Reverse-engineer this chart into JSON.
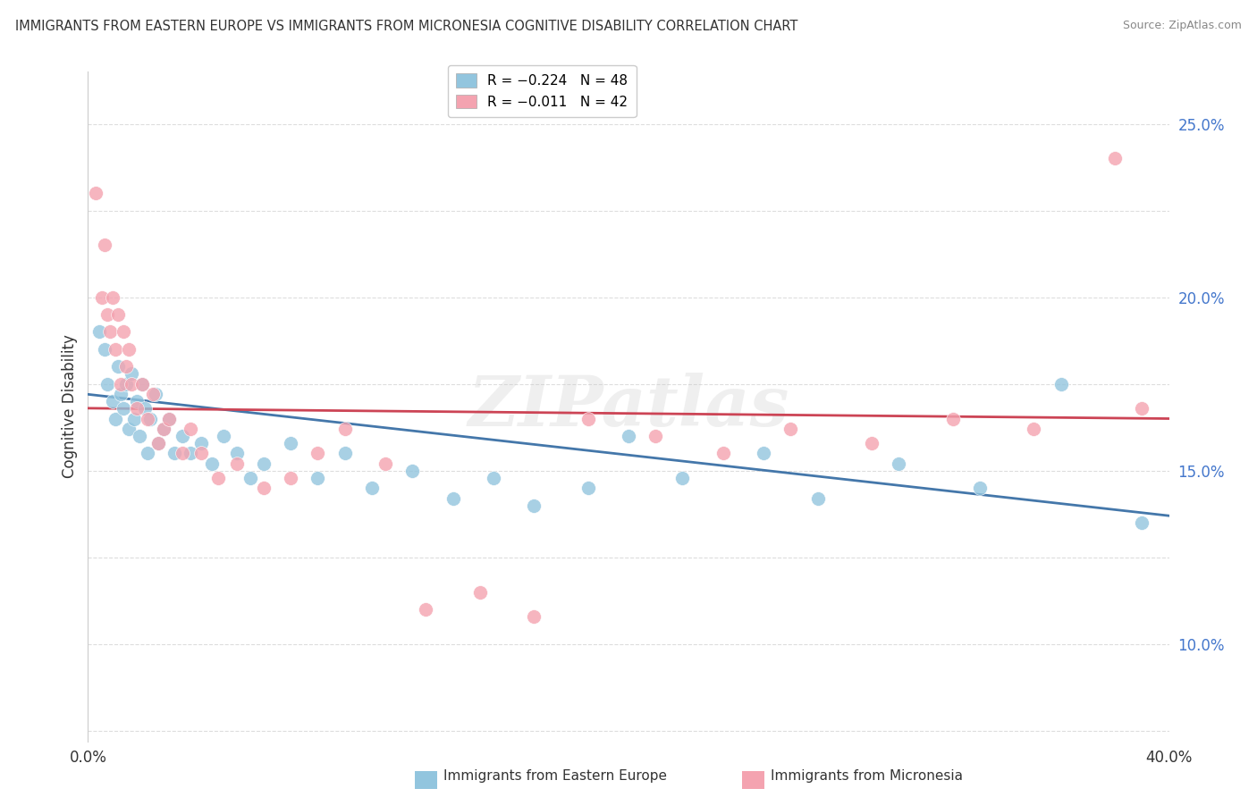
{
  "title": "IMMIGRANTS FROM EASTERN EUROPE VS IMMIGRANTS FROM MICRONESIA COGNITIVE DISABILITY CORRELATION CHART",
  "source": "Source: ZipAtlas.com",
  "ylabel": "Cognitive Disability",
  "x_min": 0.0,
  "x_max": 0.4,
  "y_min": 0.072,
  "y_max": 0.265,
  "legend1_label": "R = −0.224   N = 48",
  "legend2_label": "R = −0.011   N = 42",
  "legend1_color": "#92c5de",
  "legend2_color": "#f4a3b0",
  "trend1_color": "#4477aa",
  "trend2_color": "#cc4455",
  "watermark": "ZIPatlas",
  "eastern_europe_x": [
    0.004,
    0.006,
    0.007,
    0.009,
    0.01,
    0.011,
    0.012,
    0.013,
    0.014,
    0.015,
    0.016,
    0.017,
    0.018,
    0.019,
    0.02,
    0.021,
    0.022,
    0.023,
    0.025,
    0.026,
    0.028,
    0.03,
    0.032,
    0.035,
    0.038,
    0.042,
    0.046,
    0.05,
    0.055,
    0.06,
    0.065,
    0.075,
    0.085,
    0.095,
    0.105,
    0.12,
    0.135,
    0.15,
    0.165,
    0.185,
    0.2,
    0.22,
    0.25,
    0.27,
    0.3,
    0.33,
    0.36,
    0.39
  ],
  "eastern_europe_y": [
    0.19,
    0.185,
    0.175,
    0.17,
    0.165,
    0.18,
    0.172,
    0.168,
    0.175,
    0.162,
    0.178,
    0.165,
    0.17,
    0.16,
    0.175,
    0.168,
    0.155,
    0.165,
    0.172,
    0.158,
    0.162,
    0.165,
    0.155,
    0.16,
    0.155,
    0.158,
    0.152,
    0.16,
    0.155,
    0.148,
    0.152,
    0.158,
    0.148,
    0.155,
    0.145,
    0.15,
    0.142,
    0.148,
    0.14,
    0.145,
    0.16,
    0.148,
    0.155,
    0.142,
    0.152,
    0.145,
    0.175,
    0.135
  ],
  "micronesia_x": [
    0.003,
    0.005,
    0.006,
    0.007,
    0.008,
    0.009,
    0.01,
    0.011,
    0.012,
    0.013,
    0.014,
    0.015,
    0.016,
    0.018,
    0.02,
    0.022,
    0.024,
    0.026,
    0.028,
    0.03,
    0.035,
    0.038,
    0.042,
    0.048,
    0.055,
    0.065,
    0.075,
    0.085,
    0.095,
    0.11,
    0.125,
    0.145,
    0.165,
    0.185,
    0.21,
    0.235,
    0.26,
    0.29,
    0.32,
    0.35,
    0.38,
    0.39
  ],
  "micronesia_y": [
    0.23,
    0.2,
    0.215,
    0.195,
    0.19,
    0.2,
    0.185,
    0.195,
    0.175,
    0.19,
    0.18,
    0.185,
    0.175,
    0.168,
    0.175,
    0.165,
    0.172,
    0.158,
    0.162,
    0.165,
    0.155,
    0.162,
    0.155,
    0.148,
    0.152,
    0.145,
    0.148,
    0.155,
    0.162,
    0.152,
    0.11,
    0.115,
    0.108,
    0.165,
    0.16,
    0.155,
    0.162,
    0.158,
    0.165,
    0.162,
    0.24,
    0.168
  ],
  "trend1_x_start": 0.0,
  "trend1_y_start": 0.172,
  "trend1_x_end": 0.4,
  "trend1_y_end": 0.137,
  "trend2_x_start": 0.0,
  "trend2_y_start": 0.168,
  "trend2_x_end": 0.4,
  "trend2_y_end": 0.165
}
